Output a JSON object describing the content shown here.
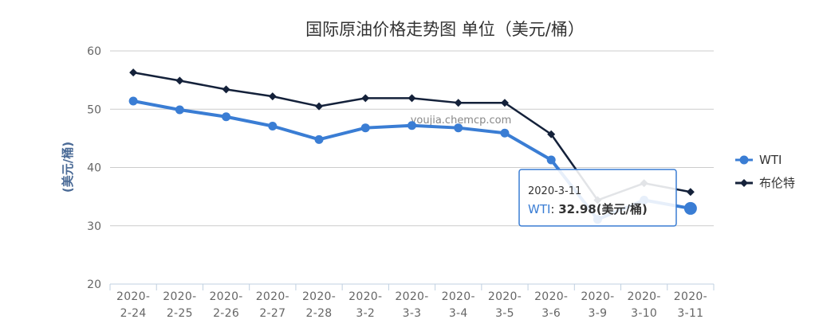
{
  "chart_data": {
    "type": "line",
    "title": "国际原油价格走势图 单位（美元/桶）",
    "ylabel": "(美元/桶)",
    "xlabel": "",
    "ylim": [
      20,
      60
    ],
    "yticks": [
      "60",
      "50",
      "40",
      "30",
      "20"
    ],
    "grid": true,
    "legend_position": "right",
    "categories": [
      [
        "2020-",
        "2-24"
      ],
      [
        "2020-",
        "2-25"
      ],
      [
        "2020-",
        "2-26"
      ],
      [
        "2020-",
        "2-27"
      ],
      [
        "2020-",
        "2-28"
      ],
      [
        "2020-",
        "3-2"
      ],
      [
        "2020-",
        "3-3"
      ],
      [
        "2020-",
        "3-4"
      ],
      [
        "2020-",
        "3-5"
      ],
      [
        "2020-",
        "3-6"
      ],
      [
        "2020-",
        "3-9"
      ],
      [
        "2020-",
        "3-10"
      ],
      [
        "2020-",
        "3-11"
      ]
    ],
    "series": [
      {
        "name": "WTI",
        "color": "#3a7dd4",
        "marker": "circle",
        "values": [
          51.4,
          49.9,
          48.7,
          47.1,
          44.8,
          46.8,
          47.2,
          46.8,
          45.9,
          41.3,
          31.1,
          34.4,
          32.98
        ]
      },
      {
        "name": "布伦特",
        "color": "#14213a",
        "marker": "diamond",
        "values": [
          56.3,
          54.9,
          53.4,
          52.2,
          50.5,
          51.9,
          51.9,
          51.1,
          51.1,
          45.7,
          34.4,
          37.3,
          35.8
        ]
      }
    ],
    "tooltip": {
      "date": "2020-3-11",
      "series_label": "WTI",
      "separator": ": ",
      "value_text": "32.98(美元/桶)",
      "category_index": 12,
      "series_index": 0
    }
  },
  "watermark": "youjia.chemcp.com",
  "colors": {
    "grid": "#cccccc",
    "axis": "#c0d0e0",
    "tooltip_border": "#3a7dd4"
  }
}
